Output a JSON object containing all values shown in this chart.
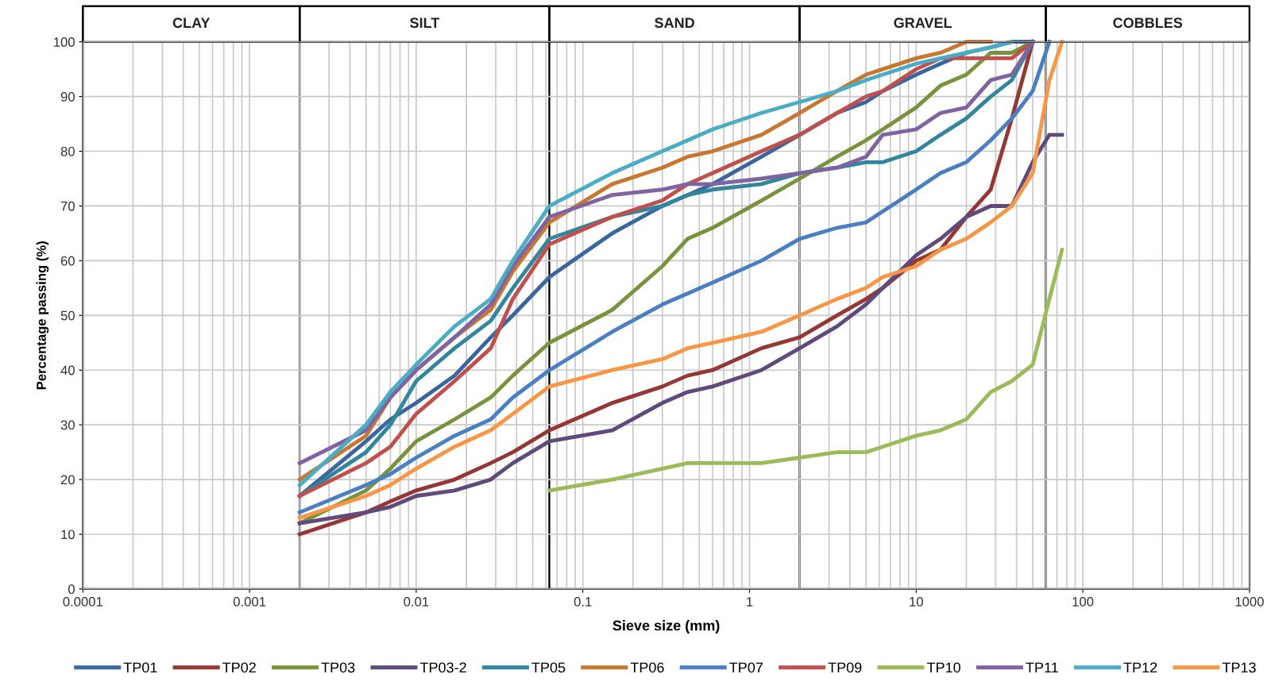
{
  "chart_data": {
    "type": "line",
    "xlabel": "Sieve size (mm)",
    "ylabel": "Percentage passing (%)",
    "log": "x",
    "grid": true,
    "legend": "bottom",
    "marker": "none",
    "line_style": "solid",
    "xlim": [
      0.0001,
      1000
    ],
    "xticks": [
      0.0001,
      0.001,
      0.01,
      0.1,
      1,
      10,
      100,
      1000
    ],
    "ylim": [
      0,
      100
    ],
    "yticks": [
      0,
      10,
      20,
      30,
      40,
      50,
      60,
      70,
      80,
      90,
      100
    ],
    "x": [
      0.002,
      0.005,
      0.007,
      0.01,
      0.017,
      0.028,
      0.038,
      0.063,
      0.15,
      0.3,
      0.425,
      0.6,
      1.18,
      2,
      3.35,
      5,
      6.3,
      10,
      14,
      20,
      28,
      37.5,
      50,
      63,
      75
    ],
    "bands": [
      {
        "axis": "x",
        "from": 0.0001,
        "to": 0.002,
        "label": "CLAY"
      },
      {
        "axis": "x",
        "from": 0.002,
        "to": 0.063,
        "label": "SILT"
      },
      {
        "axis": "x",
        "from": 0.063,
        "to": 2,
        "label": "SAND"
      },
      {
        "axis": "x",
        "from": 2,
        "to": 60,
        "label": "GRAVEL"
      },
      {
        "axis": "x",
        "from": 60,
        "to": 1000,
        "label": "COBBLES"
      }
    ],
    "series": [
      {
        "name": "TP01",
        "color": "#3a66a0",
        "values": [
          17,
          27,
          31,
          34,
          39,
          46,
          50,
          57,
          65,
          70,
          72,
          74,
          79,
          83,
          87,
          89,
          91,
          94,
          96,
          98,
          99,
          100,
          100,
          null,
          null
        ]
      },
      {
        "name": "TP02",
        "color": "#953735",
        "values": [
          10,
          14,
          16,
          18,
          20,
          23,
          25,
          29,
          34,
          37,
          39,
          40,
          44,
          46,
          50,
          53,
          55,
          60,
          62,
          68,
          73,
          86,
          100,
          null,
          null
        ]
      },
      {
        "name": "TP03",
        "color": "#77933c",
        "values": [
          12,
          18,
          22,
          27,
          31,
          35,
          39,
          45,
          51,
          59,
          64,
          66,
          71,
          75,
          79,
          82,
          84,
          88,
          92,
          94,
          98,
          98,
          100,
          null,
          null
        ]
      },
      {
        "name": "TP03-2",
        "color": "#604a7b",
        "values": [
          12,
          14,
          15,
          17,
          18,
          20,
          23,
          27,
          29,
          34,
          36,
          37,
          40,
          44,
          48,
          52,
          55,
          61,
          64,
          68,
          70,
          70,
          78,
          83,
          83
        ]
      },
      {
        "name": "TP05",
        "color": "#31859c",
        "values": [
          17,
          25,
          30,
          38,
          44,
          49,
          55,
          64,
          68,
          70,
          72,
          73,
          74,
          76,
          77,
          78,
          78,
          80,
          83,
          86,
          90,
          93,
          100,
          null,
          null
        ]
      },
      {
        "name": "TP06",
        "color": "#c7772f",
        "values": [
          20,
          28,
          35,
          40,
          46,
          51,
          58,
          67,
          74,
          77,
          79,
          80,
          83,
          87,
          91,
          94,
          95,
          97,
          98,
          100,
          100,
          null,
          null,
          null,
          null
        ]
      },
      {
        "name": "TP07",
        "color": "#4a7fc1",
        "values": [
          14,
          19,
          21,
          24,
          28,
          31,
          35,
          40,
          47,
          52,
          54,
          56,
          60,
          64,
          66,
          67,
          69,
          73,
          76,
          78,
          82,
          86,
          91,
          100,
          null
        ]
      },
      {
        "name": "TP09",
        "color": "#c0504d",
        "values": [
          17,
          23,
          26,
          32,
          38,
          44,
          53,
          63,
          68,
          71,
          74,
          76,
          80,
          83,
          87,
          90,
          91,
          95,
          97,
          97,
          97,
          97,
          100,
          null,
          null
        ]
      },
      {
        "name": "TP10",
        "color": "#9bbb59",
        "values": [
          null,
          null,
          null,
          null,
          null,
          null,
          null,
          18,
          20,
          22,
          23,
          23,
          23,
          24,
          25,
          25,
          26,
          28,
          29,
          31,
          36,
          38,
          41,
          53,
          62
        ]
      },
      {
        "name": "TP11",
        "color": "#8064a2",
        "values": [
          23,
          29,
          35,
          40,
          46,
          52,
          59,
          68,
          72,
          73,
          74,
          74,
          75,
          76,
          77,
          79,
          83,
          84,
          87,
          88,
          93,
          94,
          100,
          null,
          null
        ]
      },
      {
        "name": "TP12",
        "color": "#4bacc6",
        "values": [
          19,
          30,
          36,
          41,
          48,
          53,
          60,
          70,
          76,
          80,
          82,
          84,
          87,
          89,
          91,
          93,
          94,
          96,
          97,
          98,
          99,
          100,
          null,
          null,
          null
        ]
      },
      {
        "name": "TP13",
        "color": "#f79646",
        "values": [
          13,
          17,
          19,
          22,
          26,
          29,
          32,
          37,
          40,
          42,
          44,
          45,
          47,
          50,
          53,
          55,
          57,
          59,
          62,
          64,
          67,
          70,
          76,
          93,
          100
        ]
      }
    ]
  }
}
